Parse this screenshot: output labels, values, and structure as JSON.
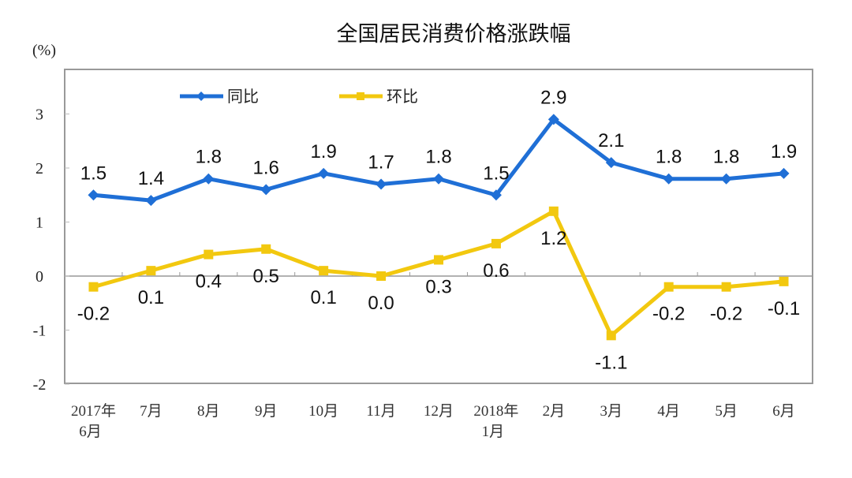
{
  "chart_data": {
    "type": "line",
    "title": "全国居民消费价格涨跌幅",
    "ylabel": "(%)",
    "xlabel": "",
    "categories": [
      [
        "2017年",
        "6月"
      ],
      [
        "7月"
      ],
      [
        "8月"
      ],
      [
        "9月"
      ],
      [
        "10月"
      ],
      [
        "11月"
      ],
      [
        "12月"
      ],
      [
        "2018年",
        "1月"
      ],
      [
        "2月"
      ],
      [
        "3月"
      ],
      [
        "4月"
      ],
      [
        "5月"
      ],
      [
        "6月"
      ]
    ],
    "yticks": [
      3,
      2,
      1,
      0,
      -1,
      -2
    ],
    "ylim": [
      -2,
      3
    ],
    "grid": false,
    "legend_position": "top-left",
    "series": [
      {
        "name": "同比",
        "color": "#1f6fd6",
        "marker": "diamond",
        "label_position": "above",
        "values": [
          1.5,
          1.4,
          1.8,
          1.6,
          1.9,
          1.7,
          1.8,
          1.5,
          2.9,
          2.1,
          1.8,
          1.8,
          1.9
        ],
        "labels": [
          "1.5",
          "1.4",
          "1.8",
          "1.6",
          "1.9",
          "1.7",
          "1.8",
          "1.5",
          "2.9",
          "2.1",
          "1.8",
          "1.8",
          "1.9"
        ]
      },
      {
        "name": "环比",
        "color": "#f2c80f",
        "marker": "square",
        "label_position": "below",
        "values": [
          -0.2,
          0.1,
          0.4,
          0.5,
          0.1,
          0.0,
          0.3,
          0.6,
          1.2,
          -1.1,
          -0.2,
          -0.2,
          -0.1
        ],
        "labels": [
          "-0.2",
          "0.1",
          "0.4",
          "0.5",
          "0.1",
          "0.0",
          "0.3",
          "0.6",
          "1.2",
          "-1.1",
          "-0.2",
          "-0.2",
          "-0.1"
        ]
      }
    ]
  }
}
